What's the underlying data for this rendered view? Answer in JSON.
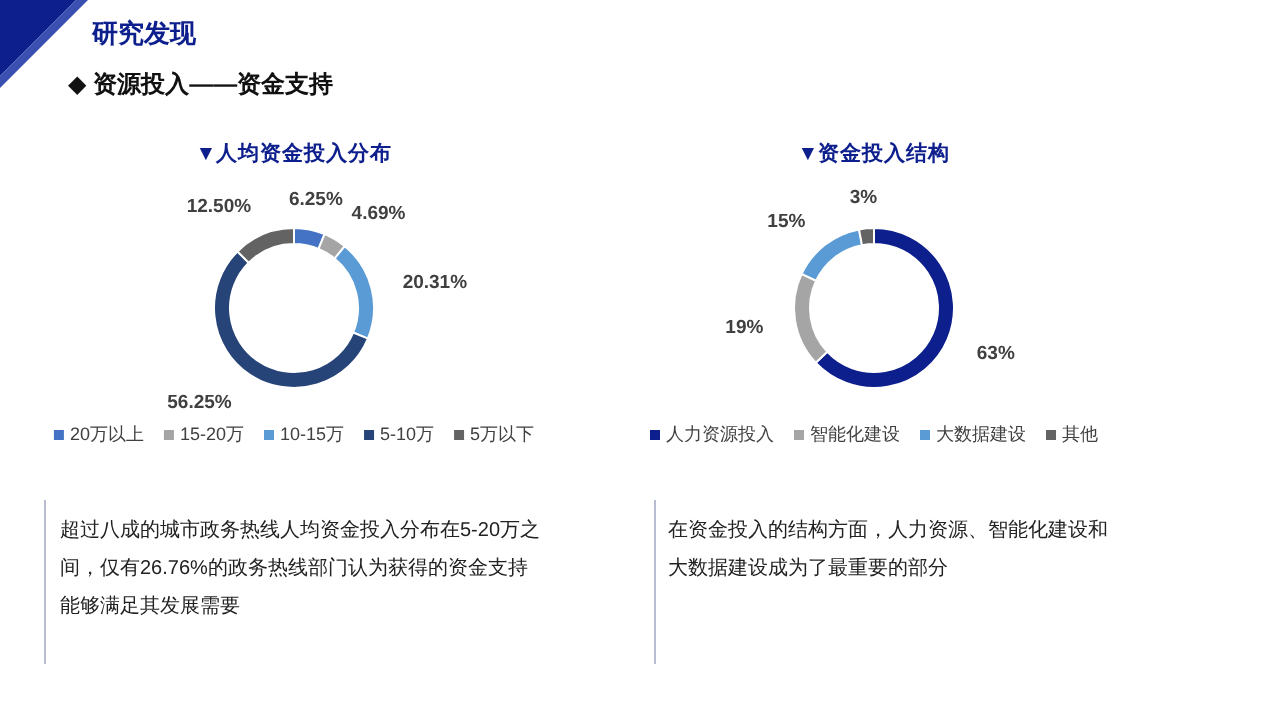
{
  "chart_data": [
    {
      "type": "donut",
      "title": "▼人均资金投入分布",
      "categories": [
        "20万以上",
        "15-20万",
        "10-15万",
        "5-10万",
        "5万以下"
      ],
      "values": [
        6.25,
        4.69,
        20.31,
        56.25,
        12.5
      ],
      "value_labels": [
        "6.25%",
        "4.69%",
        "20.31%",
        "56.25%",
        "12.50%"
      ],
      "colors": [
        "#4472c4",
        "#a5a5a5",
        "#5b9bd5",
        "#264478",
        "#636363"
      ],
      "legend": "bottom",
      "annotations": [
        "研究发现",
        "◆ 资源投入——资金支持",
        "超过八成的城市政务热线人均资金投入分布在5-20万之间，仅有26.76%的政务热线部门认为获得的资金支持能够满足其发展需要"
      ]
    },
    {
      "type": "donut",
      "title": "▼资金投入结构",
      "categories": [
        "人力资源投入",
        "智能化建设",
        "大数据建设",
        "其他"
      ],
      "values": [
        63,
        19,
        15,
        3
      ],
      "value_labels": [
        "63%",
        "19%",
        "15%",
        "3%"
      ],
      "colors": [
        "#0d1f8c",
        "#a5a5a5",
        "#5b9bd5",
        "#636363"
      ],
      "legend": "bottom",
      "annotations": [
        "在资金投入的结构方面，人力资源、智能化建设和大数据建设成为了最重要的部分"
      ]
    }
  ]
}
